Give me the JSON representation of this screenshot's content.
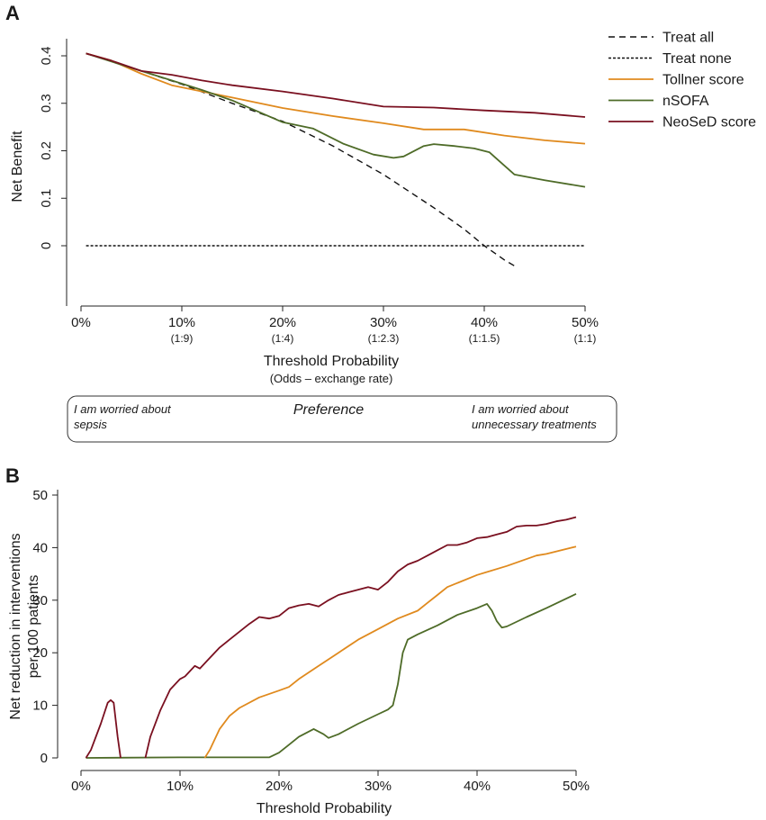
{
  "colors": {
    "treat_all": "#111111",
    "treat_none": "#111111",
    "tollner": "#e08a1e",
    "nsofa": "#4e6b28",
    "neosed": "#7a1020"
  },
  "chart_data": [
    {
      "panel": "A",
      "type": "line",
      "title": "",
      "xlabel": "Threshold Probability",
      "xlabel_sub": "(Odds – exchange rate)",
      "ylabel": "Net Benefit",
      "xlim": [
        0,
        0.5
      ],
      "ylim": [
        -0.1,
        0.42
      ],
      "x_ticks": [
        {
          "value": 0.0,
          "label": "0%",
          "odds": ""
        },
        {
          "value": 0.1,
          "label": "10%",
          "odds": "(1:9)"
        },
        {
          "value": 0.2,
          "label": "20%",
          "odds": "(1:4)"
        },
        {
          "value": 0.3,
          "label": "30%",
          "odds": "(1:2.3)"
        },
        {
          "value": 0.4,
          "label": "40%",
          "odds": "(1:1.5)"
        },
        {
          "value": 0.5,
          "label": "50%",
          "odds": "(1:1)"
        }
      ],
      "y_ticks": [
        {
          "value": 0.0,
          "label": "0"
        },
        {
          "value": 0.1,
          "label": "0.1"
        },
        {
          "value": 0.2,
          "label": "0.2"
        },
        {
          "value": 0.3,
          "label": "0.3"
        },
        {
          "value": 0.4,
          "label": "0.4"
        }
      ],
      "legend_position": "top-right",
      "series": [
        {
          "key": "treat_all",
          "name": "Treat all",
          "dash": "dashed",
          "x": [
            0.005,
            0.05,
            0.1,
            0.15,
            0.2,
            0.25,
            0.3,
            0.35,
            0.38,
            0.4,
            0.42,
            0.432
          ],
          "y": [
            0.405,
            0.375,
            0.34,
            0.3,
            0.262,
            0.21,
            0.15,
            0.08,
            0.035,
            0.0,
            -0.03,
            -0.045
          ]
        },
        {
          "key": "treat_none",
          "name": "Treat none",
          "dash": "dotted",
          "x": [
            0.005,
            0.5
          ],
          "y": [
            0.0,
            0.0
          ]
        },
        {
          "key": "tollner",
          "name": "Tollner score",
          "dash": "solid",
          "x": [
            0.005,
            0.03,
            0.06,
            0.09,
            0.12,
            0.15,
            0.2,
            0.25,
            0.3,
            0.34,
            0.38,
            0.42,
            0.46,
            0.5
          ],
          "y": [
            0.405,
            0.39,
            0.362,
            0.338,
            0.325,
            0.312,
            0.29,
            0.273,
            0.258,
            0.245,
            0.245,
            0.232,
            0.222,
            0.215
          ]
        },
        {
          "key": "nsofa",
          "name": "nSOFA",
          "dash": "solid",
          "x": [
            0.005,
            0.03,
            0.06,
            0.09,
            0.12,
            0.15,
            0.2,
            0.23,
            0.26,
            0.29,
            0.31,
            0.32,
            0.34,
            0.35,
            0.37,
            0.39,
            0.405,
            0.415,
            0.43,
            0.46,
            0.5
          ],
          "y": [
            0.405,
            0.388,
            0.368,
            0.348,
            0.328,
            0.306,
            0.26,
            0.247,
            0.215,
            0.192,
            0.185,
            0.188,
            0.21,
            0.214,
            0.21,
            0.205,
            0.197,
            0.178,
            0.15,
            0.138,
            0.124
          ]
        },
        {
          "key": "neosed",
          "name": "NeoSeD score",
          "dash": "solid",
          "x": [
            0.005,
            0.03,
            0.06,
            0.09,
            0.12,
            0.15,
            0.2,
            0.25,
            0.3,
            0.35,
            0.4,
            0.45,
            0.5
          ],
          "y": [
            0.405,
            0.39,
            0.368,
            0.36,
            0.348,
            0.338,
            0.325,
            0.31,
            0.293,
            0.291,
            0.285,
            0.28,
            0.271
          ]
        }
      ],
      "preference_box": {
        "left": "I am worried about sepsis",
        "left_line1": "I am worried about",
        "left_line2": "sepsis",
        "center": "Preference",
        "right_line1": "I am worried about",
        "right_line2": "unnecessary treatments"
      }
    },
    {
      "panel": "B",
      "type": "line",
      "title": "",
      "xlabel": "Threshold Probability",
      "ylabel_line1": "Net reduction in interventions",
      "ylabel_line2": "per 100 patients",
      "xlim": [
        0,
        0.5
      ],
      "ylim": [
        -1,
        50
      ],
      "x_ticks": [
        {
          "value": 0.0,
          "label": "0%"
        },
        {
          "value": 0.1,
          "label": "10%"
        },
        {
          "value": 0.2,
          "label": "20%"
        },
        {
          "value": 0.3,
          "label": "30%"
        },
        {
          "value": 0.4,
          "label": "40%"
        },
        {
          "value": 0.5,
          "label": "50%"
        }
      ],
      "y_ticks": [
        {
          "value": 0,
          "label": "0"
        },
        {
          "value": 10,
          "label": "10"
        },
        {
          "value": 20,
          "label": "20"
        },
        {
          "value": 30,
          "label": "30"
        },
        {
          "value": 40,
          "label": "40"
        },
        {
          "value": 50,
          "label": "50"
        }
      ],
      "series": [
        {
          "key": "neosed",
          "name": "NeoSeD score",
          "segments": [
            {
              "x": [
                0.005,
                0.01,
                0.02,
                0.027,
                0.03,
                0.033,
                0.037,
                0.04
              ],
              "y": [
                0.0,
                1.5,
                6.5,
                10.5,
                11.0,
                10.5,
                4.0,
                0.0
              ]
            },
            {
              "x": [
                0.065,
                0.07,
                0.08,
                0.09,
                0.1,
                0.105,
                0.11,
                0.115,
                0.12,
                0.13,
                0.14,
                0.15,
                0.16,
                0.17,
                0.18,
                0.19,
                0.2,
                0.21,
                0.22,
                0.23,
                0.24,
                0.25,
                0.26,
                0.27,
                0.28,
                0.29,
                0.3,
                0.31,
                0.32,
                0.33,
                0.34,
                0.35,
                0.36,
                0.37,
                0.38,
                0.39,
                0.4,
                0.41,
                0.42,
                0.43,
                0.44,
                0.45,
                0.46,
                0.47,
                0.48,
                0.49,
                0.5
              ],
              "y": [
                0.0,
                4.0,
                9.0,
                13.0,
                15.0,
                15.5,
                16.5,
                17.5,
                17.0,
                19.0,
                21.0,
                22.5,
                24.0,
                25.5,
                26.8,
                26.5,
                27.0,
                28.5,
                29.0,
                29.3,
                28.8,
                30.0,
                31.0,
                31.5,
                32.0,
                32.5,
                32.0,
                33.5,
                35.5,
                36.8,
                37.5,
                38.5,
                39.5,
                40.5,
                40.5,
                41.0,
                41.8,
                42.0,
                42.5,
                43.0,
                44.0,
                44.2,
                44.2,
                44.5,
                45.0,
                45.3,
                45.8
              ]
            }
          ]
        },
        {
          "key": "tollner",
          "name": "Tollner score",
          "segments": [
            {
              "x": [
                0.125,
                0.13,
                0.14,
                0.15,
                0.16,
                0.18,
                0.2,
                0.21,
                0.22,
                0.24,
                0.26,
                0.28,
                0.3,
                0.32,
                0.34,
                0.35,
                0.36,
                0.37,
                0.4,
                0.43,
                0.46,
                0.47,
                0.5
              ],
              "y": [
                0.0,
                1.5,
                5.5,
                8.0,
                9.5,
                11.5,
                12.8,
                13.5,
                15.0,
                17.5,
                20.0,
                22.5,
                24.5,
                26.5,
                28.0,
                29.5,
                31.0,
                32.5,
                34.8,
                36.5,
                38.5,
                38.8,
                40.2
              ]
            }
          ]
        },
        {
          "key": "nsofa",
          "name": "nSOFA",
          "segments": [
            {
              "x": [
                0.005,
                0.1,
                0.19,
                0.2,
                0.21,
                0.22,
                0.235,
                0.245,
                0.25,
                0.26,
                0.28,
                0.3,
                0.31,
                0.315,
                0.32,
                0.325,
                0.33,
                0.34,
                0.36,
                0.38,
                0.4,
                0.41,
                0.415,
                0.42,
                0.425,
                0.43,
                0.45,
                0.47,
                0.5
              ],
              "y": [
                0.0,
                0.1,
                0.1,
                1.0,
                2.5,
                4.0,
                5.5,
                4.5,
                3.8,
                4.5,
                6.5,
                8.3,
                9.2,
                10.0,
                14.0,
                20.0,
                22.5,
                23.5,
                25.2,
                27.2,
                28.5,
                29.3,
                28.0,
                26.0,
                24.8,
                25.0,
                26.8,
                28.5,
                31.2
              ]
            }
          ]
        }
      ]
    }
  ]
}
